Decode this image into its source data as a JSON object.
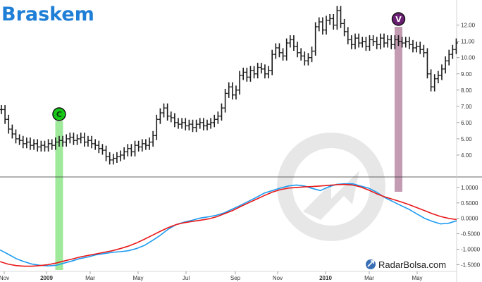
{
  "brand": {
    "name": "Braskem"
  },
  "watermark": {
    "site": "RadarBolsa.com"
  },
  "colors": {
    "price_bar": "#1a1a1a",
    "indicator_fast": "#1e9bef",
    "indicator_slow": "#e81818",
    "buy_band": "#8ee58a",
    "sell_band": "#b98aa6",
    "buy_marker": "#16c716",
    "sell_marker": "#6a1f72",
    "logo": "#1f7fd6"
  },
  "markers": [
    {
      "label": "C",
      "meaning": "buy",
      "date_index": 16
    },
    {
      "label": "V",
      "meaning": "sell",
      "date_index": 110
    }
  ],
  "chart_data": [
    {
      "type": "ohlc",
      "ylim": [
        3.0,
        13.2
      ],
      "yticks": [
        4.0,
        5.0,
        6.0,
        7.0,
        8.0,
        9.0,
        10.0,
        11.0,
        12.0
      ],
      "ytick_labels": [
        "4.00",
        "5.00",
        "6.00",
        "7.00",
        "8.00",
        "9.00",
        "10.00",
        "11.00",
        "12.00"
      ],
      "close": [
        6.8,
        6.2,
        5.6,
        5.3,
        5.0,
        4.9,
        4.7,
        4.8,
        4.6,
        4.7,
        4.5,
        4.6,
        4.5,
        4.7,
        4.6,
        4.8,
        4.9,
        4.8,
        5.0,
        5.1,
        4.9,
        5.0,
        5.1,
        4.8,
        4.9,
        4.7,
        4.6,
        4.4,
        4.3,
        3.9,
        3.7,
        3.8,
        3.9,
        4.0,
        4.2,
        4.4,
        4.2,
        4.6,
        4.5,
        4.7,
        4.6,
        4.8,
        5.2,
        6.2,
        6.6,
        6.9,
        6.4,
        6.3,
        6.0,
        5.9,
        6.0,
        5.8,
        5.9,
        5.7,
        5.9,
        6.0,
        5.8,
        5.9,
        6.0,
        6.2,
        6.4,
        6.9,
        7.8,
        8.2,
        7.7,
        8.0,
        8.9,
        9.1,
        8.8,
        9.2,
        9.0,
        9.4,
        9.3,
        9.0,
        9.2,
        10.2,
        10.6,
        10.3,
        10.1,
        10.9,
        11.1,
        10.7,
        10.3,
        10.1,
        9.8,
        10.0,
        10.4,
        11.9,
        12.2,
        11.7,
        12.3,
        12.4,
        12.0,
        12.9,
        12.1,
        11.6,
        11.1,
        10.8,
        11.2,
        10.9,
        11.0,
        10.7,
        11.1,
        11.0,
        10.8,
        11.2,
        10.9,
        11.1,
        10.8,
        11.1,
        11.0,
        10.9,
        11.0,
        10.8,
        10.6,
        10.7,
        10.5,
        10.3,
        9.0,
        8.2,
        8.7,
        8.9,
        9.3,
        9.8,
        10.2,
        10.5,
        10.9
      ],
      "xtick_labels": [
        "Nov",
        "2009",
        "Mar",
        "May",
        "Jul",
        "Sep",
        "Nov",
        "2010",
        "Mar",
        "May"
      ],
      "xtick_bold": [
        false,
        true,
        false,
        false,
        false,
        false,
        false,
        true,
        false,
        false
      ]
    },
    {
      "type": "line",
      "ylim": [
        -1.65,
        1.25
      ],
      "yticks": [
        1.0,
        0.5,
        0.0,
        -0.5,
        -1.0,
        -1.5
      ],
      "ytick_labels": [
        "1.0000",
        "0.5000",
        "0.0000",
        "-0.5000",
        "-1.0000",
        "-1.5000"
      ],
      "series": [
        {
          "values": [
            -1.02,
            -1.16,
            -1.3,
            -1.4,
            -1.48,
            -1.52,
            -1.54,
            -1.52,
            -1.45,
            -1.38,
            -1.3,
            -1.25,
            -1.18,
            -1.14,
            -1.1,
            -1.08,
            -1.05,
            -0.98,
            -0.88,
            -0.72,
            -0.55,
            -0.35,
            -0.2,
            -0.12,
            -0.06,
            0.01,
            0.05,
            0.1,
            0.18,
            0.3,
            0.42,
            0.55,
            0.68,
            0.82,
            0.9,
            0.98,
            1.05,
            1.08,
            1.05,
            0.97,
            0.9,
            1.02,
            1.1,
            1.12,
            1.12,
            1.05,
            0.98,
            0.85,
            0.68,
            0.55,
            0.42,
            0.3,
            0.15,
            0.0,
            -0.1,
            -0.18,
            -0.16,
            -0.08
          ]
        },
        {
          "values": [
            -1.4,
            -1.48,
            -1.53,
            -1.55,
            -1.55,
            -1.53,
            -1.5,
            -1.45,
            -1.38,
            -1.32,
            -1.25,
            -1.2,
            -1.15,
            -1.1,
            -1.05,
            -0.98,
            -0.9,
            -0.8,
            -0.68,
            -0.55,
            -0.42,
            -0.3,
            -0.2,
            -0.14,
            -0.1,
            -0.06,
            -0.02,
            0.05,
            0.15,
            0.25,
            0.38,
            0.5,
            0.62,
            0.74,
            0.85,
            0.93,
            0.98,
            1.0,
            1.02,
            1.03,
            1.05,
            1.07,
            1.09,
            1.1,
            1.08,
            1.02,
            0.92,
            0.8,
            0.7,
            0.62,
            0.54,
            0.45,
            0.35,
            0.25,
            0.15,
            0.06,
            0.0,
            -0.04
          ]
        }
      ],
      "xtick_labels": [
        "Nov",
        "2009",
        "Mar",
        "May",
        "Jul",
        "Sep",
        "Nov",
        "2010",
        "Mar",
        "May"
      ]
    }
  ]
}
